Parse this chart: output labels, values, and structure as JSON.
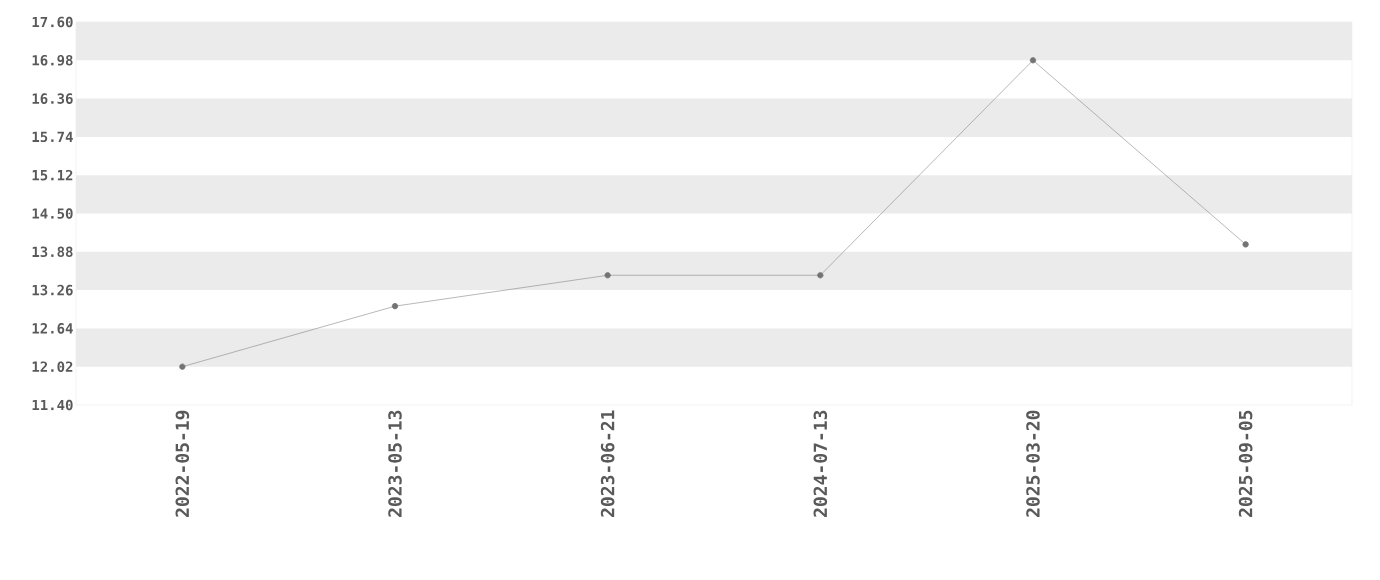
{
  "chart_data": {
    "type": "line",
    "categories": [
      "2022-05-19",
      "2023-05-13",
      "2023-06-21",
      "2024-07-13",
      "2025-03-20",
      "2025-09-05"
    ],
    "series": [
      {
        "color": "#888888",
        "values": [
          12.02,
          13.0,
          13.5,
          13.5,
          16.98,
          14.0
        ]
      }
    ],
    "ylim": [
      11.4,
      17.6
    ],
    "yticks": [
      {
        "value": 11.4,
        "label": "11.40"
      },
      {
        "value": 12.02,
        "label": "12.02"
      },
      {
        "value": 12.64,
        "label": "12.64"
      },
      {
        "value": 13.26,
        "label": "13.26"
      },
      {
        "value": 13.88,
        "label": "13.88"
      },
      {
        "value": 14.5,
        "label": "14.50"
      },
      {
        "value": 15.12,
        "label": "15.12"
      },
      {
        "value": 15.74,
        "label": "15.74"
      },
      {
        "value": 16.36,
        "label": "16.36"
      },
      {
        "value": 16.98,
        "label": "16.98"
      },
      {
        "value": 17.6,
        "label": "17.60"
      }
    ],
    "bands": [
      {
        "axis": "y",
        "from": 12.02,
        "to": 12.64,
        "color": "#ebebeb"
      },
      {
        "axis": "y",
        "from": 13.26,
        "to": 13.88,
        "color": "#ebebeb"
      },
      {
        "axis": "y",
        "from": 14.5,
        "to": 15.12,
        "color": "#ebebeb"
      },
      {
        "axis": "y",
        "from": 15.74,
        "to": 16.36,
        "color": "#ebebeb"
      },
      {
        "axis": "y",
        "from": 16.98,
        "to": 17.6,
        "color": "#ebebeb"
      }
    ],
    "marker": "circle",
    "line_style": "solid"
  }
}
